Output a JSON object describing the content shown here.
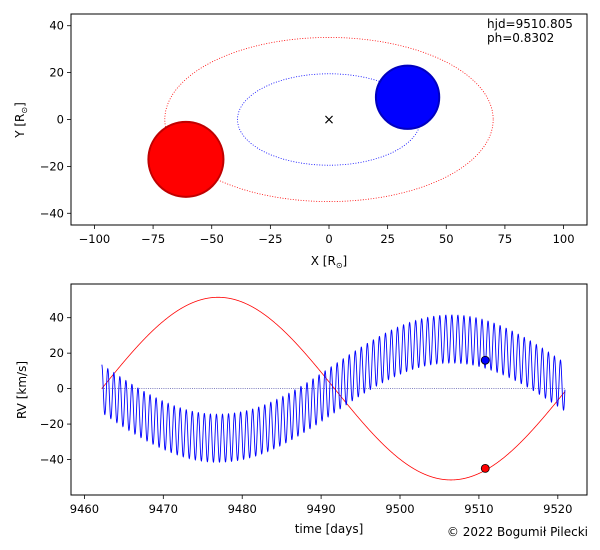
{
  "chart_data": [
    {
      "type": "scatter",
      "xlabel": "X [R",
      "xlabel_sub": "⊙",
      "xlabel_end": "]",
      "ylabel": "Y [R",
      "ylabel_sub": "⊙",
      "ylabel_end": "]",
      "xlim": [
        -110,
        110
      ],
      "ylim": [
        -45,
        45
      ],
      "xticks": [
        -100,
        -75,
        -50,
        -25,
        0,
        25,
        50,
        75,
        100
      ],
      "yticks": [
        -40,
        -20,
        0,
        20,
        40
      ],
      "annotation_hjd": "hjd=9510.805",
      "annotation_ph": "ph=0.8302",
      "center_marker": "×",
      "center": [
        0,
        0
      ],
      "orbits": [
        {
          "color": "#ff0000",
          "cx": 0,
          "cy": 0,
          "rx": 70,
          "ry": 35
        },
        {
          "color": "#0000ff",
          "cx": 0,
          "cy": 0,
          "rx": 39,
          "ry": 19.5
        }
      ],
      "stars": [
        {
          "color": "#ff0000",
          "edge": "#c00000",
          "x": -61,
          "y": -17,
          "radius": 16
        },
        {
          "color": "#0000ff",
          "edge": "#0000c0",
          "x": 33.5,
          "y": 9.5,
          "radius": 13.5
        }
      ]
    },
    {
      "type": "line",
      "xlabel": "time [days]",
      "ylabel": "RV [km/s]",
      "xlim": [
        9458.3,
        9523.7
      ],
      "ylim": [
        -60,
        59
      ],
      "xticks": [
        9460,
        9470,
        9480,
        9490,
        9500,
        9510,
        9520
      ],
      "yticks": [
        -40,
        -20,
        0,
        20,
        40
      ],
      "zero_line": 0,
      "t_start": 9462.2,
      "t_end": 9520.9,
      "series": [
        {
          "color": "#ff0000",
          "gamma": 0,
          "amplitude": 51.5,
          "period": 59.0,
          "epoch": 9462.2
        },
        {
          "color": "#0000ff",
          "gamma": 0,
          "amplitude": 28,
          "period": 59.0,
          "epoch": 9462.2,
          "pulse_amplitude": 13.5,
          "pulse_period": 0.765
        }
      ],
      "current_points": [
        {
          "color": "#ff0000",
          "x": 9510.805,
          "y": -45
        },
        {
          "color": "#0000ff",
          "x": 9510.805,
          "y": 16
        }
      ]
    }
  ],
  "copyright": "© 2022 Bogumił Pilecki"
}
